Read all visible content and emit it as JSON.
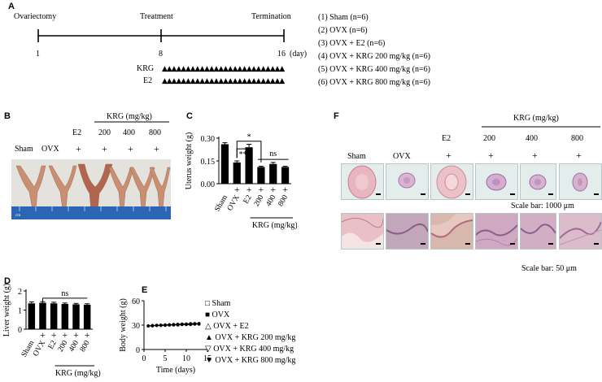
{
  "panel_labels": {
    "a": "A",
    "b": "B",
    "c": "C",
    "d": "D",
    "e": "E",
    "f": "F"
  },
  "panel_a": {
    "events": [
      "Ovariectomy",
      "Treatment",
      "Termination"
    ],
    "ticks": [
      "1",
      "8",
      "16"
    ],
    "unit": "(day)",
    "treatments": [
      "KRG",
      "E2"
    ],
    "groups": [
      "(1) Sham (n=6)",
      "(2) OVX (n=6)",
      "(3) OVX + E2 (n=6)",
      "(4) OVX + KRG 200 mg/kg (n=6)",
      "(5) OVX + KRG 400 mg/kg (n=6)",
      "(6) OVX + KRG 800 mg/kg (n=6)"
    ]
  },
  "panel_b": {
    "krg_header": "KRG (mg/kg)",
    "col_top": [
      "E2",
      "200",
      "400",
      "800"
    ],
    "row_labels": [
      "Sham",
      "OVX",
      "+",
      "+",
      "+",
      "+"
    ],
    "ruler_text": "cm"
  },
  "panel_f": {
    "krg_header": "KRG (mg/kg)",
    "col_top": [
      "E2",
      "200",
      "400",
      "800"
    ],
    "row_labels": [
      "Sham",
      "OVX",
      "+",
      "+",
      "+",
      "+"
    ],
    "scale_top": "Scale bar: 1000 μm",
    "scale_bottom": "Scale bar: 50 μm"
  },
  "chart_data": [
    {
      "id": "C",
      "type": "bar",
      "ylabel": "Uterus weight (g)",
      "xlabel": "KRG (mg/kg)",
      "categories": [
        "Sham",
        "OVX",
        "E2",
        "200",
        "400",
        "800"
      ],
      "plus_row": [
        "+",
        "+",
        "+",
        "+",
        "+"
      ],
      "values": [
        0.26,
        0.14,
        0.24,
        0.11,
        0.13,
        0.11
      ],
      "errors": [
        0.01,
        0.01,
        0.02,
        0.005,
        0.01,
        0.005
      ],
      "ylim": [
        0,
        0.3
      ],
      "yticks": [
        "0.00",
        "0.15",
        "0.30"
      ],
      "significance": [
        "*",
        "**",
        "ns"
      ],
      "colors": {
        "Sham": "#000000",
        "default": "#000000"
      }
    },
    {
      "id": "D",
      "type": "bar",
      "ylabel": "Liver weight (g)",
      "xlabel": "KRG (mg/kg)",
      "categories": [
        "Sham",
        "OVX",
        "E2",
        "200",
        "400",
        "800"
      ],
      "plus_row": [
        "+",
        "+",
        "+",
        "+",
        "+"
      ],
      "values": [
        1.35,
        1.38,
        1.35,
        1.32,
        1.3,
        1.28
      ],
      "errors": [
        0.08,
        0.06,
        0.06,
        0.05,
        0.05,
        0.05
      ],
      "ylim": [
        0,
        2
      ],
      "yticks": [
        "0",
        "1",
        "2"
      ],
      "significance": [
        "ns"
      ]
    },
    {
      "id": "E",
      "type": "line",
      "ylabel": "Body weight (g)",
      "xlabel": "Time (days)",
      "ylim": [
        0,
        60
      ],
      "xlim": [
        0,
        15
      ],
      "yticks": [
        "0",
        "30",
        "60"
      ],
      "xticks": [
        "0",
        "5",
        "10",
        "15"
      ],
      "x": [
        1,
        2,
        3,
        4,
        5,
        6,
        7,
        8,
        9,
        10,
        11,
        12,
        13
      ],
      "series": [
        {
          "name": "Sham",
          "marker": "□",
          "values": [
            29,
            29,
            29.5,
            29.5,
            30,
            30,
            30.5,
            30.5,
            31,
            31,
            31,
            31.5,
            31.5
          ]
        },
        {
          "name": "OVX",
          "marker": "■",
          "values": [
            29,
            29.5,
            29.5,
            30,
            30,
            30.5,
            30.5,
            31,
            31,
            31.5,
            31.5,
            32,
            32
          ]
        },
        {
          "name": "OVX + E2",
          "marker": "△",
          "values": [
            29,
            29,
            29.5,
            29.5,
            29.5,
            30,
            30,
            30,
            30.5,
            30.5,
            30.5,
            31,
            31
          ]
        },
        {
          "name": "OVX + KRG 200 mg/kg",
          "marker": "▲",
          "values": [
            29,
            29.5,
            29.5,
            30,
            30,
            30.5,
            30.5,
            31,
            31,
            31,
            31.5,
            31.5,
            32
          ]
        },
        {
          "name": "OVX + KRG 400 mg/kg",
          "marker": "▽",
          "values": [
            29,
            29.5,
            29.5,
            30,
            30,
            30,
            30.5,
            30.5,
            31,
            31,
            31.5,
            31.5,
            31.5
          ]
        },
        {
          "name": "OVX + KRG 800 mg/kg",
          "marker": "▼",
          "values": [
            29,
            29.5,
            30,
            30,
            30.5,
            30.5,
            31,
            31,
            31.5,
            31.5,
            32,
            32,
            32
          ]
        }
      ]
    }
  ]
}
